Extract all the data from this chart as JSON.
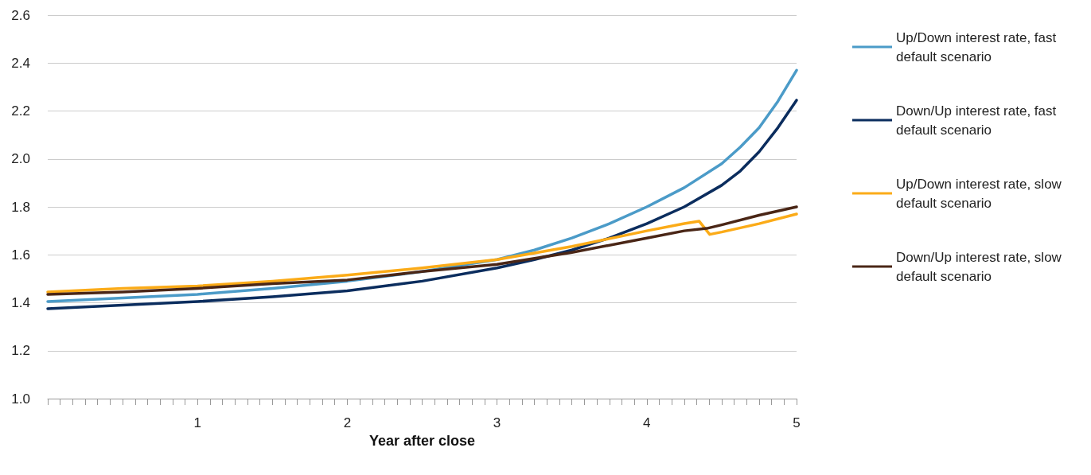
{
  "chart_data": {
    "type": "line",
    "xlabel": "Year after close",
    "grid": "y",
    "legend": "right",
    "marker": "none",
    "line_style": "solid",
    "xlim": [
      0,
      5
    ],
    "xticks": [
      {
        "value": 0,
        "label": null
      },
      {
        "value": 0.0833,
        "label": null
      },
      {
        "value": 0.1667,
        "label": null
      },
      {
        "value": 0.25,
        "label": null
      },
      {
        "value": 0.3333,
        "label": null
      },
      {
        "value": 0.4167,
        "label": null
      },
      {
        "value": 0.5,
        "label": null
      },
      {
        "value": 0.5833,
        "label": null
      },
      {
        "value": 0.6667,
        "label": null
      },
      {
        "value": 0.75,
        "label": null
      },
      {
        "value": 0.8333,
        "label": null
      },
      {
        "value": 0.9167,
        "label": null
      },
      {
        "value": 1,
        "label": "1"
      },
      {
        "value": 1.0833,
        "label": null
      },
      {
        "value": 1.1667,
        "label": null
      },
      {
        "value": 1.25,
        "label": null
      },
      {
        "value": 1.3333,
        "label": null
      },
      {
        "value": 1.4167,
        "label": null
      },
      {
        "value": 1.5,
        "label": null
      },
      {
        "value": 1.5833,
        "label": null
      },
      {
        "value": 1.6667,
        "label": null
      },
      {
        "value": 1.75,
        "label": null
      },
      {
        "value": 1.8333,
        "label": null
      },
      {
        "value": 1.9167,
        "label": null
      },
      {
        "value": 2,
        "label": "2"
      },
      {
        "value": 2.0833,
        "label": null
      },
      {
        "value": 2.1667,
        "label": null
      },
      {
        "value": 2.25,
        "label": null
      },
      {
        "value": 2.3333,
        "label": null
      },
      {
        "value": 2.4167,
        "label": null
      },
      {
        "value": 2.5,
        "label": null
      },
      {
        "value": 2.5833,
        "label": null
      },
      {
        "value": 2.6667,
        "label": null
      },
      {
        "value": 2.75,
        "label": null
      },
      {
        "value": 2.8333,
        "label": null
      },
      {
        "value": 2.9167,
        "label": null
      },
      {
        "value": 3,
        "label": "3"
      },
      {
        "value": 3.0833,
        "label": null
      },
      {
        "value": 3.1667,
        "label": null
      },
      {
        "value": 3.25,
        "label": null
      },
      {
        "value": 3.3333,
        "label": null
      },
      {
        "value": 3.4167,
        "label": null
      },
      {
        "value": 3.5,
        "label": null
      },
      {
        "value": 3.5833,
        "label": null
      },
      {
        "value": 3.6667,
        "label": null
      },
      {
        "value": 3.75,
        "label": null
      },
      {
        "value": 3.8333,
        "label": null
      },
      {
        "value": 3.9167,
        "label": null
      },
      {
        "value": 4,
        "label": "4"
      },
      {
        "value": 4.0833,
        "label": null
      },
      {
        "value": 4.1667,
        "label": null
      },
      {
        "value": 4.25,
        "label": null
      },
      {
        "value": 4.3333,
        "label": null
      },
      {
        "value": 4.4167,
        "label": null
      },
      {
        "value": 4.5,
        "label": null
      },
      {
        "value": 4.5833,
        "label": null
      },
      {
        "value": 4.6667,
        "label": null
      },
      {
        "value": 4.75,
        "label": null
      },
      {
        "value": 4.8333,
        "label": null
      },
      {
        "value": 4.9167,
        "label": null
      },
      {
        "value": 5,
        "label": "5"
      }
    ],
    "ylim": [
      1.0,
      2.6
    ],
    "yticks": [
      {
        "value": 1.0,
        "label": "1.0"
      },
      {
        "value": 1.2,
        "label": "1.2"
      },
      {
        "value": 1.4,
        "label": "1.4"
      },
      {
        "value": 1.6,
        "label": "1.6"
      },
      {
        "value": 1.8,
        "label": "1.8"
      },
      {
        "value": 2.0,
        "label": "2.0"
      },
      {
        "value": 2.2,
        "label": "2.2"
      },
      {
        "value": 2.4,
        "label": "2.4"
      },
      {
        "value": 2.6,
        "label": "2.6"
      }
    ],
    "series": [
      {
        "name": "Up/Down interest rate, fast default scenario",
        "color": "#4b9bc8",
        "x": [
          0,
          0.5,
          1,
          1.5,
          2,
          2.5,
          3,
          3.25,
          3.5,
          3.75,
          4,
          4.25,
          4.5,
          4.625,
          4.75,
          4.875,
          5
        ],
        "values": [
          1.405,
          1.42,
          1.435,
          1.46,
          1.49,
          1.53,
          1.58,
          1.62,
          1.67,
          1.73,
          1.8,
          1.88,
          1.98,
          2.05,
          2.13,
          2.24,
          2.37
        ]
      },
      {
        "name": "Down/Up interest rate, fast default scenario",
        "color": "#0b2d5e",
        "x": [
          0,
          0.5,
          1,
          1.5,
          2,
          2.5,
          3,
          3.25,
          3.5,
          3.75,
          4,
          4.25,
          4.5,
          4.625,
          4.75,
          4.875,
          5
        ],
        "values": [
          1.375,
          1.39,
          1.405,
          1.425,
          1.45,
          1.49,
          1.545,
          1.58,
          1.62,
          1.67,
          1.73,
          1.8,
          1.89,
          1.95,
          2.03,
          2.13,
          2.245
        ]
      },
      {
        "name": "Up/Down interest rate, slow default scenario",
        "color": "#fbab18",
        "x": [
          0,
          0.5,
          1,
          1.5,
          2,
          2.5,
          3,
          3.5,
          4,
          4.25,
          4.35,
          4.42,
          4.5,
          4.75,
          5
        ],
        "values": [
          1.445,
          1.46,
          1.47,
          1.49,
          1.515,
          1.545,
          1.58,
          1.635,
          1.7,
          1.73,
          1.74,
          1.685,
          1.695,
          1.73,
          1.77
        ]
      },
      {
        "name": "Down/Up interest rate, slow default scenario",
        "color": "#4a2616",
        "x": [
          0,
          0.5,
          1,
          1.5,
          2,
          2.5,
          3,
          3.5,
          4,
          4.25,
          4.4,
          4.5,
          4.75,
          5
        ],
        "values": [
          1.435,
          1.445,
          1.46,
          1.48,
          1.495,
          1.53,
          1.56,
          1.61,
          1.67,
          1.7,
          1.71,
          1.725,
          1.765,
          1.8
        ]
      }
    ]
  }
}
